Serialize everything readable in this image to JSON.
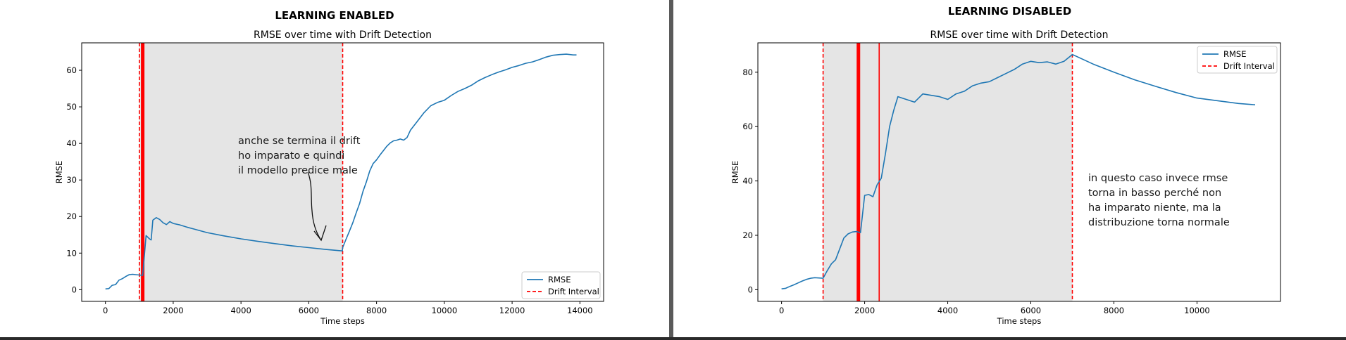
{
  "panels": [
    {
      "heading": "LEARNING ENABLED",
      "note": "anche se termina il drift\nho imparato e quindi\nil modello predice male",
      "chart_data": {
        "type": "line",
        "title": "RMSE over time with Drift Detection",
        "xlabel": "Time steps",
        "ylabel": "RMSE",
        "xlim": [
          -700,
          14700
        ],
        "ylim": [
          -3.2,
          67.5
        ],
        "xticks": [
          0,
          2000,
          4000,
          6000,
          8000,
          10000,
          12000,
          14000
        ],
        "yticks": [
          0,
          10,
          20,
          30,
          40,
          50,
          60
        ],
        "grid": false,
        "legend_position": "lower right",
        "legend": [
          "RMSE",
          "Drift Interval"
        ],
        "shaded_interval": [
          1000,
          7000
        ],
        "drift_lines": [
          {
            "x": 1000,
            "style": "dashed",
            "width": "thin"
          },
          {
            "x": 1100,
            "style": "solid",
            "width": "thick"
          },
          {
            "x": 7000,
            "style": "dashed",
            "width": "thin"
          }
        ],
        "series": [
          {
            "name": "RMSE",
            "color": "#1f77b4",
            "x": [
              0,
              100,
              200,
              300,
              400,
              500,
              600,
              700,
              800,
              900,
              1000,
              1100,
              1200,
              1300,
              1350,
              1400,
              1500,
              1600,
              1700,
              1800,
              1900,
              2000,
              2200,
              2400,
              2600,
              2800,
              3000,
              3500,
              4000,
              4500,
              5000,
              5500,
              6000,
              6500,
              6990,
              7000,
              7100,
              7200,
              7300,
              7400,
              7500,
              7600,
              7700,
              7800,
              7900,
              8000,
              8100,
              8200,
              8300,
              8400,
              8500,
              8600,
              8700,
              8800,
              8900,
              9000,
              9200,
              9400,
              9600,
              9800,
              10000,
              10200,
              10400,
              10600,
              10800,
              11000,
              11200,
              11400,
              11600,
              11800,
              12000,
              12200,
              12400,
              12600,
              12800,
              13000,
              13200,
              13400,
              13600,
              13800,
              13900
            ],
            "values": [
              0.2,
              0.3,
              1.2,
              1.4,
              2.6,
              3.0,
              3.6,
              4.1,
              4.2,
              4.1,
              4.0,
              3.9,
              14.8,
              13.9,
              13.6,
              19.0,
              19.7,
              19.2,
              18.3,
              17.8,
              18.6,
              18.1,
              17.7,
              17.1,
              16.6,
              16.1,
              15.6,
              14.7,
              13.9,
              13.2,
              12.6,
              12.0,
              11.5,
              11.0,
              10.6,
              11.5,
              13.8,
              16.0,
              18.3,
              21.0,
              23.6,
              26.9,
              29.5,
              32.5,
              34.5,
              35.5,
              36.8,
              38.0,
              39.2,
              40.1,
              40.7,
              40.9,
              41.2,
              40.9,
              41.6,
              43.6,
              46.0,
              48.4,
              50.3,
              51.2,
              51.8,
              53.1,
              54.2,
              55.0,
              55.9,
              57.1,
              58.0,
              58.8,
              59.5,
              60.1,
              60.8,
              61.3,
              61.9,
              62.3,
              62.9,
              63.6,
              64.1,
              64.3,
              64.4,
              64.2,
              64.2
            ]
          }
        ]
      }
    },
    {
      "heading": "LEARNING DISABLED",
      "note": "in questo caso invece rmse\ntorna in basso perché non\nha imparato niente, ma la\ndistribuzione torna normale",
      "chart_data": {
        "type": "line",
        "title": "RMSE over time with Drift Detection",
        "xlabel": "Time steps",
        "ylabel": "RMSE",
        "xlim": [
          -570,
          12010
        ],
        "ylim": [
          -4.3,
          90.8
        ],
        "xticks": [
          0,
          2000,
          4000,
          6000,
          8000,
          10000
        ],
        "yticks": [
          0,
          20,
          40,
          60,
          80
        ],
        "grid": false,
        "legend_position": "upper right",
        "legend": [
          "RMSE",
          "Drift Interval"
        ],
        "shaded_interval": [
          1000,
          7000
        ],
        "drift_lines": [
          {
            "x": 1000,
            "style": "dashed",
            "width": "thin"
          },
          {
            "x": 1850,
            "style": "solid",
            "width": "thick"
          },
          {
            "x": 2350,
            "style": "solid",
            "width": "thin"
          },
          {
            "x": 7000,
            "style": "dashed",
            "width": "thin"
          }
        ],
        "series": [
          {
            "name": "RMSE",
            "color": "#1f77b4",
            "x": [
              0,
              100,
              200,
              300,
              400,
              500,
              600,
              700,
              800,
              900,
              1000,
              1100,
              1200,
              1300,
              1400,
              1500,
              1600,
              1700,
              1800,
              1900,
              2000,
              2100,
              2200,
              2300,
              2400,
              2500,
              2600,
              2700,
              2800,
              3000,
              3200,
              3400,
              3600,
              3800,
              4000,
              4200,
              4400,
              4600,
              4800,
              5000,
              5200,
              5400,
              5600,
              5800,
              6000,
              6200,
              6400,
              6600,
              6800,
              7000,
              7500,
              8000,
              8500,
              9000,
              9500,
              10000,
              10500,
              11000,
              11400
            ],
            "values": [
              0.3,
              0.5,
              1.2,
              1.8,
              2.5,
              3.2,
              3.8,
              4.2,
              4.4,
              4.3,
              4.2,
              7.0,
              9.5,
              11.0,
              15.0,
              19.0,
              20.5,
              21.2,
              21.4,
              21.0,
              34.7,
              35.0,
              34.2,
              38.6,
              41.0,
              50.0,
              60.0,
              66.0,
              71.0,
              70.0,
              69.0,
              72.0,
              71.5,
              71.0,
              70.0,
              72.0,
              73.0,
              75.0,
              76.0,
              76.5,
              78.0,
              79.5,
              81.0,
              83.0,
              84.0,
              83.5,
              83.8,
              83.0,
              84.0,
              86.5,
              83.0,
              80.0,
              77.2,
              74.8,
              72.5,
              70.5,
              69.5,
              68.5,
              68.0
            ]
          }
        ]
      }
    }
  ],
  "colors": {
    "rmse_line": "#1f77b4",
    "drift_line": "#ff0000",
    "shade": "#e5e5e5"
  }
}
